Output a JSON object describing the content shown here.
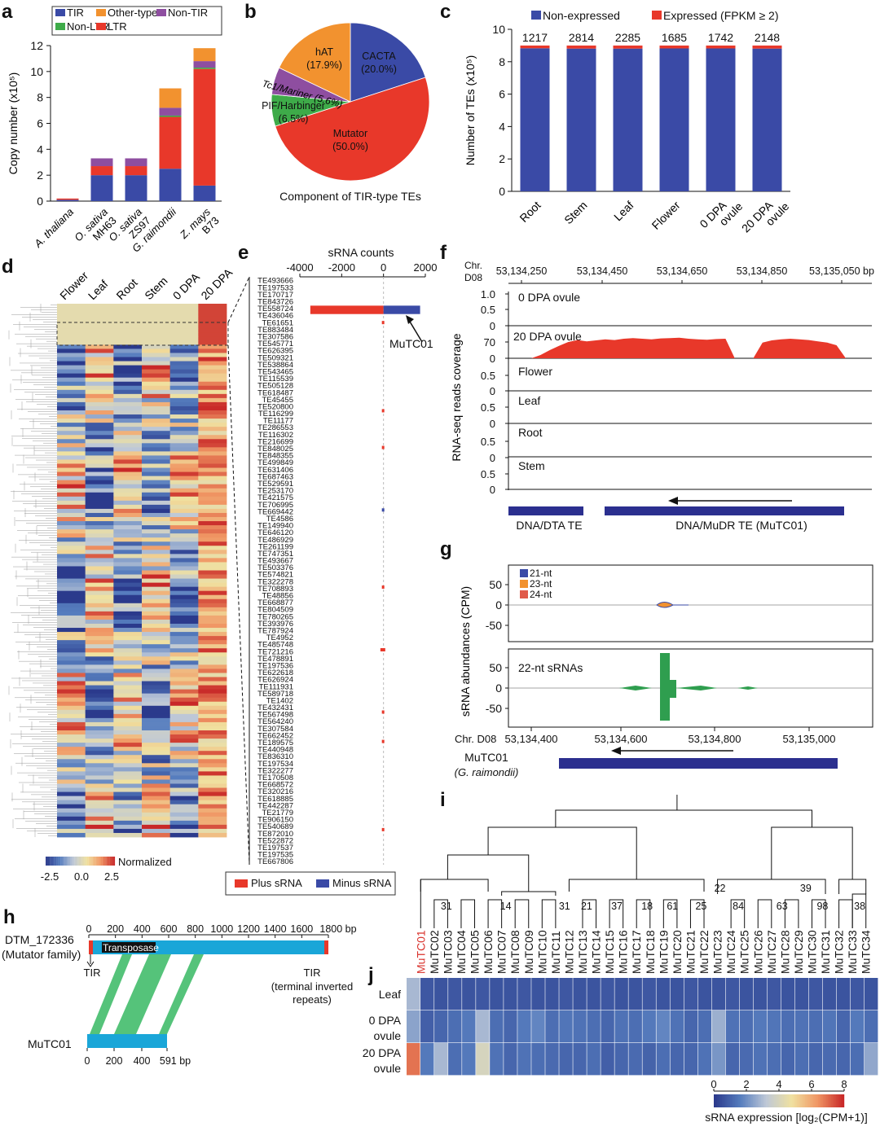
{
  "panel_letters": [
    "a",
    "b",
    "c",
    "d",
    "e",
    "f",
    "g",
    "h",
    "i",
    "j"
  ],
  "colors": {
    "TIR": "#3a4aa6",
    "LTR": "#e8382a",
    "NonLTR": "#3eab49",
    "NonTIR": "#8e4ea0",
    "OtherType": "#f2922f",
    "navy": "#2b2f8f",
    "red": "#e8382a",
    "green": "#2f9e4f",
    "cyan": "#1aa6d8",
    "greenband": "#55c37a"
  },
  "chart_data": [
    {
      "panel": "a",
      "type": "bar",
      "stacked": true,
      "ylabel": "Copy number (x10⁵)",
      "ylim": [
        0,
        12
      ],
      "yticks": [
        0,
        2,
        4,
        6,
        8,
        10,
        12
      ],
      "categories": [
        [
          "A. thaliana"
        ],
        [
          "O. sativa",
          "MH63"
        ],
        [
          "O. sativa",
          "ZS97"
        ],
        [
          "G. raimondii"
        ],
        [
          "Z. mays",
          "B73"
        ]
      ],
      "legend": [
        "TIR",
        "Non-LTR",
        "Other-type",
        "LTR",
        "Non-TIR"
      ],
      "series": [
        {
          "name": "TIR",
          "values": [
            0.1,
            2.0,
            2.0,
            2.5,
            1.2
          ]
        },
        {
          "name": "LTR",
          "values": [
            0.1,
            0.7,
            0.7,
            4.0,
            9.0
          ]
        },
        {
          "name": "Non-LTR",
          "values": [
            0.0,
            0.0,
            0.0,
            0.1,
            0.1
          ]
        },
        {
          "name": "Non-TIR",
          "values": [
            0.0,
            0.6,
            0.6,
            0.6,
            0.5
          ]
        },
        {
          "name": "Other-type",
          "values": [
            0.0,
            0.0,
            0.0,
            1.5,
            1.0
          ]
        }
      ]
    },
    {
      "panel": "b",
      "type": "pie",
      "title": "Component of TIR-type TEs",
      "slices": [
        {
          "label": "CACTA",
          "pct_label": "(20.0%)",
          "value": 20.0
        },
        {
          "label": "Mutator",
          "pct_label": "(50.0%)",
          "value": 50.0
        },
        {
          "label": "PIF/Harbinger",
          "pct_label": "(6.5%)",
          "value": 6.5
        },
        {
          "label": "Tc1/Mariner",
          "pct_label": "(5.6%)",
          "value": 5.6
        },
        {
          "label": "hAT",
          "pct_label": "(17.9%)",
          "value": 17.9
        }
      ]
    },
    {
      "panel": "c",
      "type": "bar",
      "stacked": true,
      "ylabel": "Number of TEs (x10⁵)",
      "ylim": [
        0,
        10
      ],
      "yticks": [
        0,
        2,
        4,
        6,
        8,
        10
      ],
      "categories": [
        [
          "Root"
        ],
        [
          "Stem"
        ],
        [
          "Leaf"
        ],
        [
          "Flower"
        ],
        [
          "0 DPA",
          "ovule"
        ],
        [
          "20 DPA",
          "ovule"
        ]
      ],
      "top_labels": [
        "1217",
        "2814",
        "2285",
        "1685",
        "1742",
        "2148"
      ],
      "legend": [
        "Non-expressed",
        "Expressed (FPKM ≥ 2)"
      ],
      "series": [
        {
          "name": "Non-expressed",
          "values": [
            8.83,
            8.81,
            8.81,
            8.82,
            8.82,
            8.81
          ]
        },
        {
          "name": "Expressed (FPKM ≥ 2)",
          "values": [
            0.17,
            0.19,
            0.19,
            0.18,
            0.18,
            0.19
          ]
        }
      ]
    },
    {
      "panel": "d",
      "type": "heatmap",
      "columns": [
        "Flower",
        "Leaf",
        "Root",
        "Stem",
        "0 DPA",
        "20 DPA"
      ],
      "colorbar": {
        "title": "Normalized",
        "ticks": [
          "-2.5",
          "0.0",
          "2.5"
        ],
        "range": [
          -2.5,
          2.5
        ]
      }
    },
    {
      "panel": "e",
      "type": "bar",
      "orientation": "horizontal",
      "title": "sRNA counts",
      "xlim": [
        -4000,
        2000
      ],
      "xticks": [
        "-4000",
        "-2000",
        "0",
        "2000"
      ],
      "annotation": "MuTC01",
      "legend": [
        "Plus  sRNA",
        "Minus sRNA"
      ],
      "row_labels": [
        "TE493666",
        "TE197533",
        "TE170717",
        "TE843726",
        "TE558724",
        "TE436046",
        "TE61651",
        "TE883484",
        "TE307586",
        "TE545771",
        "TE626395",
        "TE509321",
        "TE538864",
        "TE543465",
        "TE115539",
        "TE505128",
        "TE618487",
        "TE45455",
        "TE520800",
        "TE116299",
        "TE11177",
        "TE286553",
        "TE116302",
        "TE216699",
        "TE848025",
        "TE848355",
        "TE499849",
        "TE631406",
        "TE687463",
        "TE529591",
        "TE253170",
        "TE421575",
        "TE706995",
        "TE669442",
        "TE4586",
        "TE149940",
        "TE646120",
        "TE486929",
        "TE261199",
        "TE747351",
        "TE493667",
        "TE503376",
        "TE574821",
        "TE322278",
        "TE708893",
        "TE48856",
        "TE668877",
        "TE804509",
        "TE780265",
        "TE393976",
        "TE787924",
        "TE4952",
        "TE485748",
        "TE721216",
        "TE478891",
        "TE197536",
        "TE622618",
        "TE626924",
        "TE111931",
        "TE589718",
        "TE1402",
        "TE432431",
        "TE567498",
        "TE564240",
        "TE307584",
        "TE662452",
        "TE189575",
        "TE440948",
        "TE836310",
        "TE197534",
        "TE322277",
        "TE170508",
        "TE668572",
        "TE320216",
        "TE618885",
        "TE442287",
        "TE21779",
        "TE906150",
        "TE540689",
        "TE872010",
        "TE522872",
        "TE197537",
        "TE197535",
        "TE667806"
      ],
      "bars": [
        {
          "row": "TE558724",
          "plus": -3500,
          "minus": 1750
        }
      ]
    },
    {
      "panel": "f",
      "type": "area",
      "ylabel": "RNA-seq reads coverage",
      "axis_title": [
        "Chr.",
        "D08"
      ],
      "xticks": [
        "53,134,250",
        "53,134,450",
        "53,134,650",
        "53,134,850",
        "53,135,050 bp"
      ],
      "tracks": [
        {
          "name": "0 DPA ovule",
          "yticks": [
            "1.0",
            "0.5",
            "0"
          ]
        },
        {
          "name": "20 DPA ovule",
          "yticks": [
            "70",
            "0"
          ],
          "values": [
            0,
            10,
            25,
            38,
            50,
            56,
            52,
            55,
            58,
            56,
            60,
            62,
            60,
            58,
            61,
            62,
            63,
            60,
            58,
            57,
            59,
            60,
            0,
            0,
            0,
            48,
            55,
            58,
            60,
            58,
            56,
            52,
            48,
            40,
            0
          ]
        },
        {
          "name": "Flower",
          "yticks": [
            "0.5",
            "0"
          ]
        },
        {
          "name": "Leaf",
          "yticks": [
            "0.5",
            "0"
          ]
        },
        {
          "name": "Root",
          "yticks": [
            "0.5",
            "0"
          ]
        },
        {
          "name": "Stem",
          "yticks": [
            "0.5",
            "0"
          ]
        }
      ],
      "features": [
        "DNA/DTA TE",
        "DNA/MuDR TE (MuTC01)"
      ]
    },
    {
      "panel": "g",
      "type": "area",
      "ylabel": "sRNA abundances (CPM)",
      "axis_title": "Chr. D08",
      "xticks": [
        "53,134,400",
        "53,134,600",
        "53,134,800",
        "53,135,000"
      ],
      "tracks": [
        {
          "legend": [
            "21-nt",
            "23-nt",
            "24-nt"
          ],
          "yticks": [
            "50",
            "0",
            "-50"
          ]
        },
        {
          "name": "22-nt sRNAs",
          "yticks": [
            "50",
            "0",
            "-50"
          ]
        }
      ],
      "feature": [
        "MuTC01",
        "(G. raimondii)"
      ]
    },
    {
      "panel": "h",
      "type": "table",
      "top_name": [
        "DTM_172336",
        "(Mutator family)"
      ],
      "top_ticks": [
        "0",
        "200",
        "400",
        "600",
        "800",
        "1000",
        "1200",
        "1400",
        "1600",
        "1800 bp"
      ],
      "domain_label": "Transposase",
      "tir": "TIR",
      "tir_note": [
        "TIR",
        "(terminal inverted",
        "repeats)"
      ],
      "bottom_name": "MuTC01",
      "bottom_ticks": [
        "0",
        "200",
        "400",
        "591 bp"
      ]
    },
    {
      "panel": "i",
      "type": "table",
      "leaves": [
        "MuTC01",
        "MuTC02",
        "MuTC03",
        "MuTC04",
        "MuTC05",
        "MuTC06",
        "MuTC07",
        "MuTC08",
        "MuTC09",
        "MuTC10",
        "MuTC11",
        "MuTC12",
        "MuTC13",
        "MuTC14",
        "MuTC15",
        "MuTC16",
        "MuTC17",
        "MuTC18",
        "MuTC19",
        "MuTC20",
        "MuTC21",
        "MuTC22",
        "MuTC23",
        "MuTC24",
        "MuTC25",
        "MuTC26",
        "MuTC27",
        "MuTC28",
        "MuTC29",
        "MuTC30",
        "MuTC31",
        "MuTC32",
        "MuTC33",
        "MuTC34"
      ],
      "bootstrap": [
        "31",
        "14",
        "31",
        "21",
        "37",
        "18",
        "61",
        "25",
        "22",
        "84",
        "39",
        "63",
        "98",
        "38"
      ]
    },
    {
      "panel": "j",
      "type": "heatmap",
      "rows": [
        [
          "Leaf"
        ],
        [
          "0 DPA",
          "ovule"
        ],
        [
          "20 DPA",
          "ovule"
        ]
      ],
      "values": [
        [
          3.0,
          0.6,
          0.5,
          0.6,
          0.5,
          0.6,
          0.5,
          0.5,
          0.6,
          0.5,
          0.5,
          0.6,
          0.5,
          0.5,
          0.6,
          0.5,
          0.5,
          0.6,
          0.5,
          0.5,
          0.6,
          0.5,
          0.5,
          0.6,
          0.5,
          0.5,
          0.6,
          0.5,
          0.5,
          0.6,
          0.5,
          0.5,
          0.6,
          0.5
        ],
        [
          2.5,
          0.8,
          1.0,
          1.2,
          1.5,
          3.0,
          1.2,
          1.0,
          1.5,
          1.8,
          1.2,
          1.4,
          1.3,
          1.2,
          1.0,
          1.3,
          1.2,
          1.5,
          1.8,
          1.3,
          1.0,
          1.2,
          2.8,
          1.3,
          1.2,
          1.5,
          1.4,
          1.2,
          1.3,
          1.2,
          1.4,
          1.0,
          1.5,
          1.2
        ],
        [
          7.5,
          1.5,
          3.0,
          1.2,
          1.5,
          4.2,
          1.3,
          1.0,
          1.3,
          1.2,
          1.1,
          1.0,
          1.0,
          1.2,
          0.8,
          1.0,
          1.1,
          0.9,
          1.2,
          1.0,
          1.0,
          1.3,
          2.2,
          1.0,
          1.1,
          1.3,
          1.2,
          1.0,
          1.2,
          1.0,
          1.1,
          1.0,
          1.2,
          2.6
        ]
      ],
      "colorbar": {
        "ticks": [
          "0",
          "2",
          "4",
          "6",
          "8"
        ],
        "range": [
          0,
          8
        ],
        "title": "sRNA expression [log₂(CPM+1)]"
      }
    }
  ]
}
